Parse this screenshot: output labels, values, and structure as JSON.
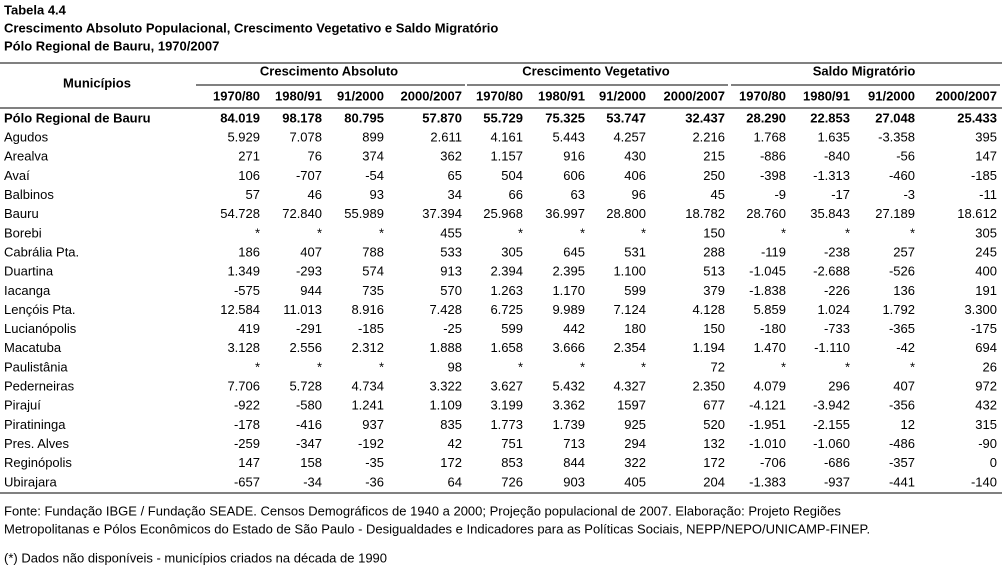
{
  "header": {
    "title": "Tabela 4.4",
    "subtitle": "Crescimento Absoluto Populacional, Crescimento Vegetativo e Saldo Migratório",
    "region": "Pólo Regional de Bauru, 1970/2007"
  },
  "table": {
    "first_column": "Municípios",
    "groups": [
      "Crescimento Absoluto",
      "Crescimento Vegetativo",
      "Saldo Migratório"
    ],
    "subheaders": [
      "1970/80",
      "1980/91",
      "91/2000",
      "2000/2007",
      "1970/80",
      "1980/91",
      "91/2000",
      "2000/2007",
      "1970/80",
      "1980/91",
      "91/2000",
      "2000/2007"
    ],
    "rows": [
      {
        "name": "Pólo Regional de Bauru",
        "cells": [
          "84.019",
          "98.178",
          "80.795",
          "57.870",
          "55.729",
          "75.325",
          "53.747",
          "32.437",
          "28.290",
          "22.853",
          "27.048",
          "25.433"
        ]
      },
      {
        "name": "Agudos",
        "cells": [
          "5.929",
          "7.078",
          "899",
          "2.611",
          "4.161",
          "5.443",
          "4.257",
          "2.216",
          "1.768",
          "1.635",
          "-3.358",
          "395"
        ]
      },
      {
        "name": "Arealva",
        "cells": [
          "271",
          "76",
          "374",
          "362",
          "1.157",
          "916",
          "430",
          "215",
          "-886",
          "-840",
          "-56",
          "147"
        ]
      },
      {
        "name": "Avaí",
        "cells": [
          "106",
          "-707",
          "-54",
          "65",
          "504",
          "606",
          "406",
          "250",
          "-398",
          "-1.313",
          "-460",
          "-185"
        ]
      },
      {
        "name": "Balbinos",
        "cells": [
          "57",
          "46",
          "93",
          "34",
          "66",
          "63",
          "96",
          "45",
          "-9",
          "-17",
          "-3",
          "-11"
        ]
      },
      {
        "name": "Bauru",
        "cells": [
          "54.728",
          "72.840",
          "55.989",
          "37.394",
          "25.968",
          "36.997",
          "28.800",
          "18.782",
          "28.760",
          "35.843",
          "27.189",
          "18.612"
        ]
      },
      {
        "name": "Borebi",
        "cells": [
          "*",
          "*",
          "*",
          "455",
          "*",
          "*",
          "*",
          "150",
          "*",
          "*",
          "*",
          "305"
        ]
      },
      {
        "name": "Cabrália Pta.",
        "cells": [
          "186",
          "407",
          "788",
          "533",
          "305",
          "645",
          "531",
          "288",
          "-119",
          "-238",
          "257",
          "245"
        ]
      },
      {
        "name": "Duartina",
        "cells": [
          "1.349",
          "-293",
          "574",
          "913",
          "2.394",
          "2.395",
          "1.100",
          "513",
          "-1.045",
          "-2.688",
          "-526",
          "400"
        ]
      },
      {
        "name": "Iacanga",
        "cells": [
          "-575",
          "944",
          "735",
          "570",
          "1.263",
          "1.170",
          "599",
          "379",
          "-1.838",
          "-226",
          "136",
          "191"
        ]
      },
      {
        "name": "Lençóis Pta.",
        "cells": [
          "12.584",
          "11.013",
          "8.916",
          "7.428",
          "6.725",
          "9.989",
          "7.124",
          "4.128",
          "5.859",
          "1.024",
          "1.792",
          "3.300"
        ]
      },
      {
        "name": "Lucianópolis",
        "cells": [
          "419",
          "-291",
          "-185",
          "-25",
          "599",
          "442",
          "180",
          "150",
          "-180",
          "-733",
          "-365",
          "-175"
        ]
      },
      {
        "name": "Macatuba",
        "cells": [
          "3.128",
          "2.556",
          "2.312",
          "1.888",
          "1.658",
          "3.666",
          "2.354",
          "1.194",
          "1.470",
          "-1.110",
          "-42",
          "694"
        ]
      },
      {
        "name": "Paulistânia",
        "cells": [
          "*",
          "*",
          "*",
          "98",
          "*",
          "*",
          "*",
          "72",
          "*",
          "*",
          "*",
          "26"
        ]
      },
      {
        "name": "Pederneiras",
        "cells": [
          "7.706",
          "5.728",
          "4.734",
          "3.322",
          "3.627",
          "5.432",
          "4.327",
          "2.350",
          "4.079",
          "296",
          "407",
          "972"
        ]
      },
      {
        "name": "Pirajuí",
        "cells": [
          "-922",
          "-580",
          "1.241",
          "1.109",
          "3.199",
          "3.362",
          "1597",
          "677",
          "-4.121",
          "-3.942",
          "-356",
          "432"
        ]
      },
      {
        "name": "Piratininga",
        "cells": [
          "-178",
          "-416",
          "937",
          "835",
          "1.773",
          "1.739",
          "925",
          "520",
          "-1.951",
          "-2.155",
          "12",
          "315"
        ]
      },
      {
        "name": "Pres. Alves",
        "cells": [
          "-259",
          "-347",
          "-192",
          "42",
          "751",
          "713",
          "294",
          "132",
          "-1.010",
          "-1.060",
          "-486",
          "-90"
        ]
      },
      {
        "name": "Reginópolis",
        "cells": [
          "147",
          "158",
          "-35",
          "172",
          "853",
          "844",
          "322",
          "172",
          "-706",
          "-686",
          "-357",
          "0"
        ]
      },
      {
        "name": "Ubirajara",
        "cells": [
          "-657",
          "-34",
          "-36",
          "64",
          "726",
          "903",
          "405",
          "204",
          "-1.383",
          "-937",
          "-441",
          "-140"
        ]
      }
    ]
  },
  "footer": {
    "source_lines": [
      "Fonte: Fundação IBGE / Fundação SEADE. Censos Demográficos de 1940 a 2000; Projeção populacional de 2007. Elaboração: Projeto Regiões",
      "Metropolitanas e Pólos Econômicos do Estado de São Paulo - Desigualdades e Indicadores para as Políticas Sociais, NEPP/NEPO/UNICAMP-FINEP."
    ],
    "note": "(*) Dados não disponíveis - municípios criados na década de 1990"
  }
}
